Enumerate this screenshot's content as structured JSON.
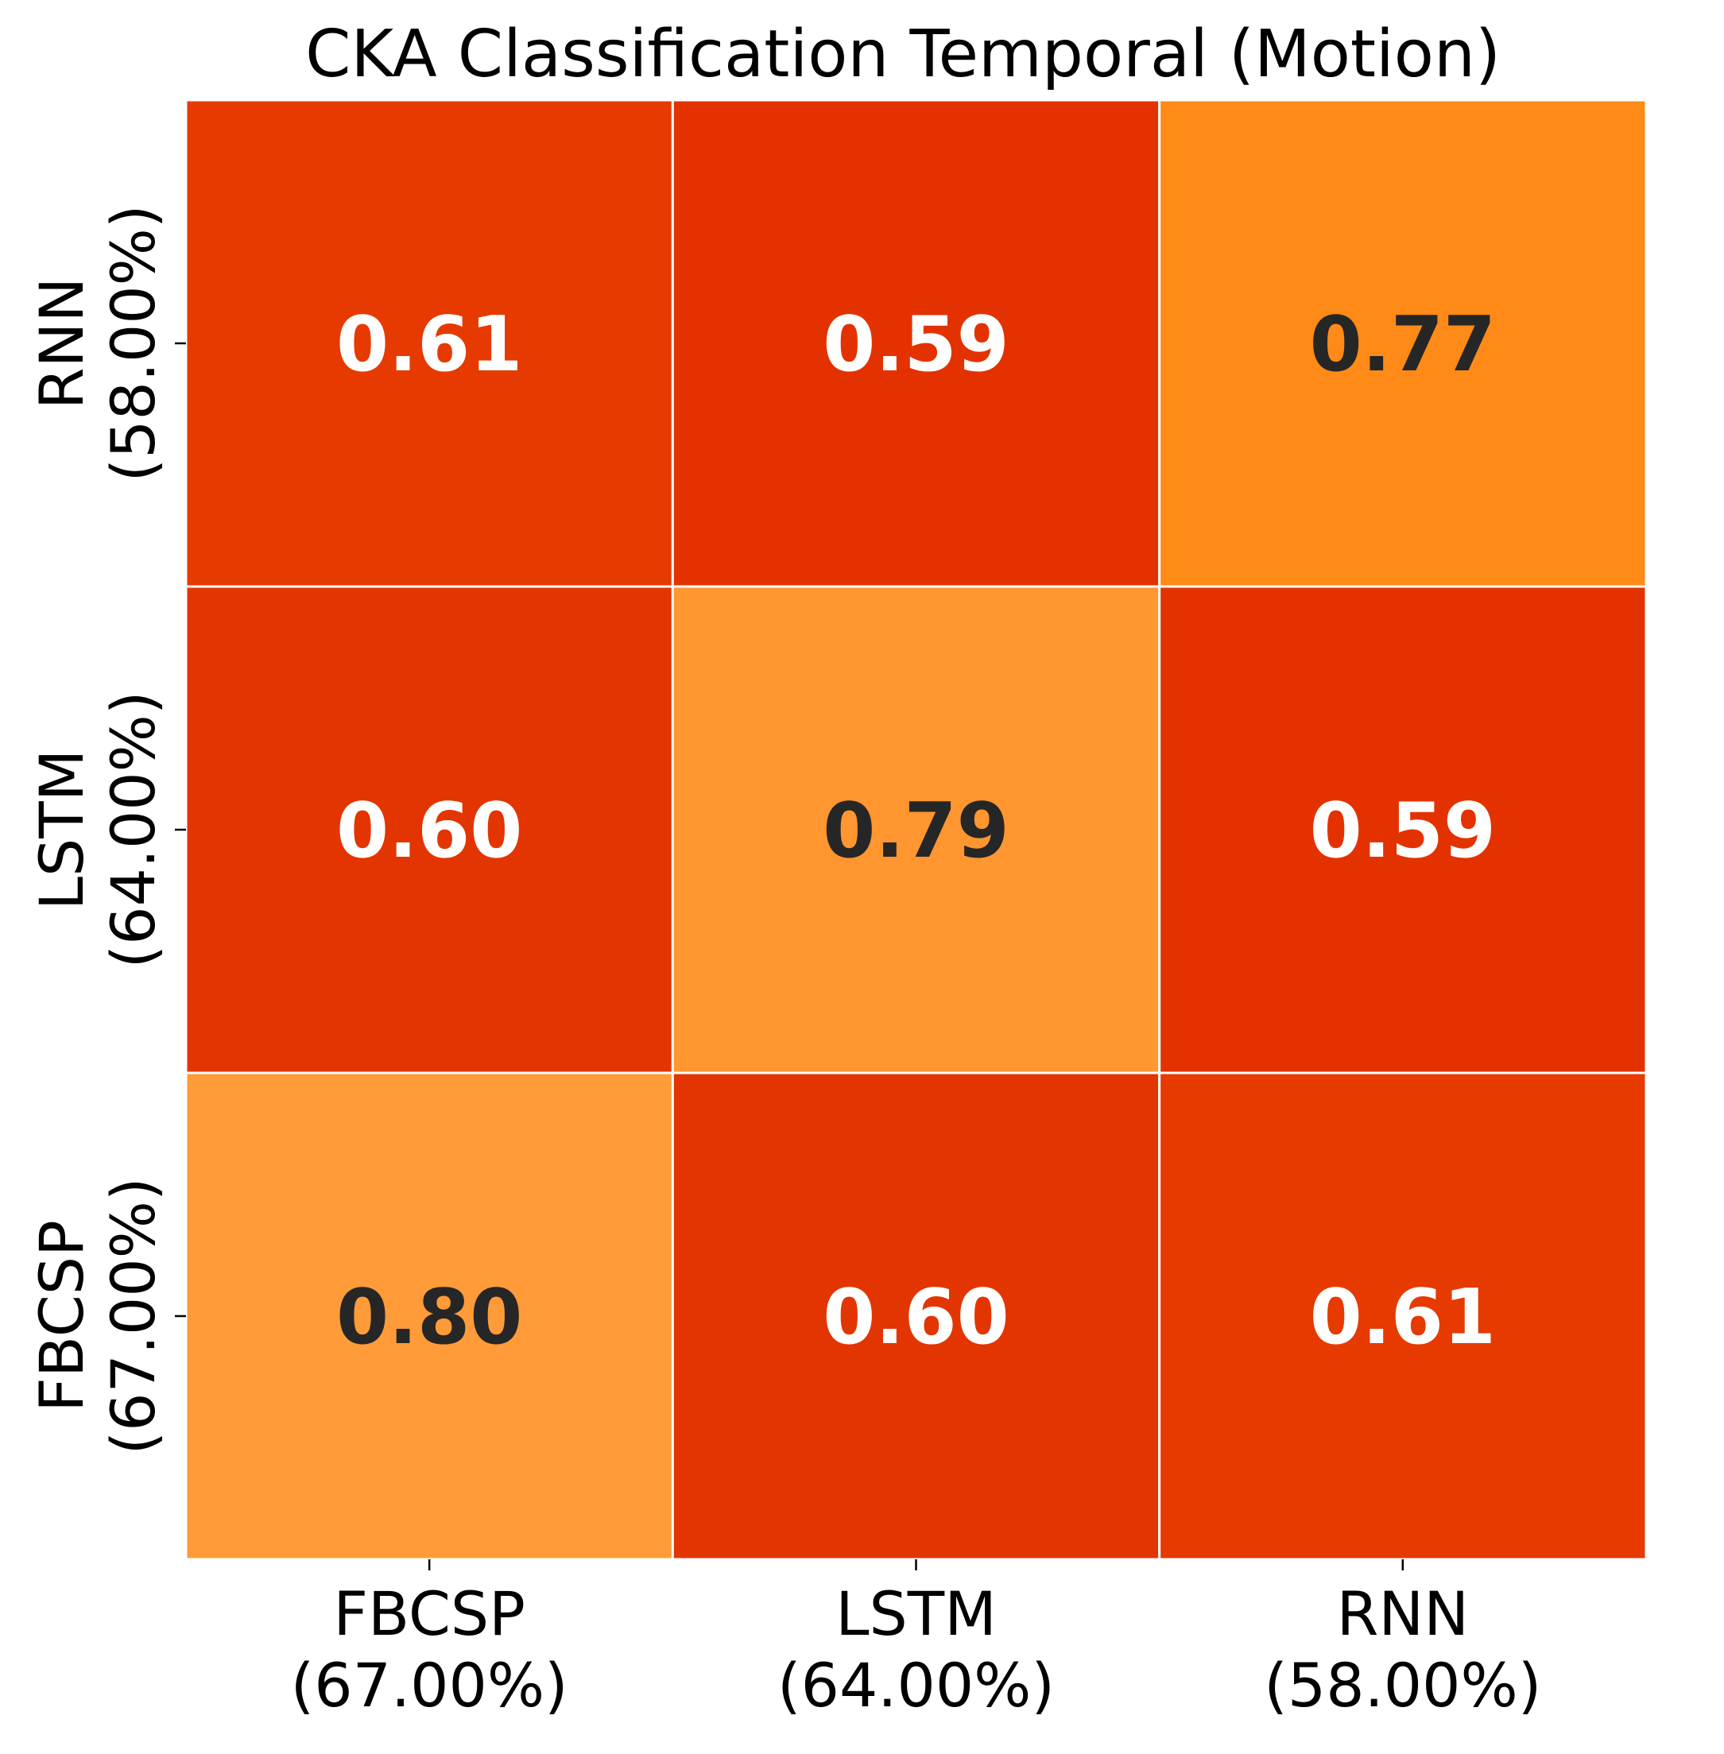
{
  "chart_data": {
    "type": "heatmap",
    "title": "CKA Classification Temporal (Motion)",
    "x_labels": [
      [
        "FBCSP",
        "(67.00%)"
      ],
      [
        "LSTM",
        "(64.00%)"
      ],
      [
        "RNN",
        "(58.00%)"
      ]
    ],
    "y_labels": [
      [
        "RNN",
        "(58.00%)"
      ],
      [
        "LSTM",
        "(64.00%)"
      ],
      [
        "FBCSP",
        "(67.00%)"
      ]
    ],
    "values": [
      [
        0.61,
        0.59,
        0.77
      ],
      [
        0.6,
        0.79,
        0.59
      ],
      [
        0.8,
        0.6,
        0.61
      ]
    ],
    "value_format": "0.00",
    "cell_colors": [
      [
        "#e63a00",
        "#e33200",
        "#ff8a17"
      ],
      [
        "#e33502",
        "#ff9630",
        "#e33200"
      ],
      [
        "#ff9b38",
        "#e33502",
        "#e63a00"
      ]
    ],
    "label_colors": {
      "light_cell": "#262626",
      "dark_cell": "#ffffff"
    },
    "colorbar": false,
    "grid_line_color": "#ffffff"
  }
}
